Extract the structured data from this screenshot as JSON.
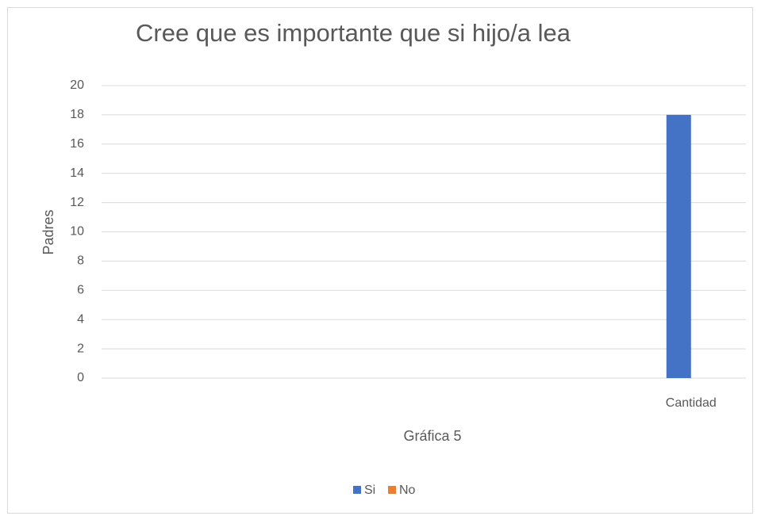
{
  "chart_data": {
    "type": "bar",
    "title": "Cree que es importante que si hijo/a lea",
    "y_label": "Padres",
    "x_label": "Gráfica 5",
    "categories": [
      null,
      null,
      null,
      null,
      "Cantidad"
    ],
    "series": [
      {
        "name": "Si",
        "color": "#4472c4",
        "values": [
          null,
          null,
          null,
          null,
          18
        ]
      },
      {
        "name": "No",
        "color": "#ed7d31",
        "values": [
          null,
          null,
          null,
          null,
          0
        ]
      }
    ],
    "ylim": [
      0,
      20
    ],
    "yticks": [
      0,
      2,
      4,
      6,
      8,
      10,
      12,
      14,
      16,
      18,
      20
    ],
    "grid": true,
    "legend": "bottom"
  }
}
